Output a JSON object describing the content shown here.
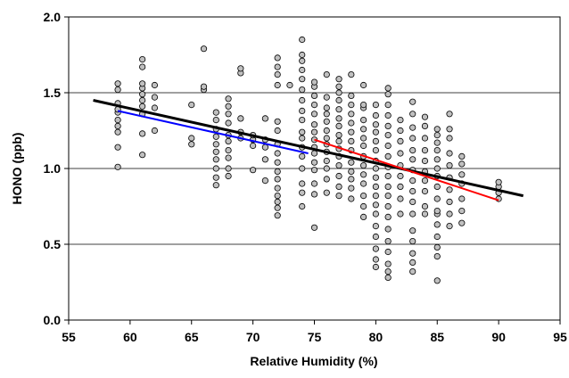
{
  "chart_data": {
    "type": "scatter",
    "title": "",
    "xlabel": "Relative Humidity (%)",
    "ylabel": "HONO (ppb)",
    "xlim": [
      55,
      95
    ],
    "ylim": [
      0.0,
      2.0
    ],
    "x_ticks": [
      "55",
      "60",
      "65",
      "70",
      "75",
      "80",
      "85",
      "90",
      "95"
    ],
    "y_ticks": [
      "0.0",
      "0.5",
      "1.0",
      "1.5",
      "2.0"
    ],
    "grid": "horizontal",
    "legend": "none",
    "marker_fill": "#c0c0c0",
    "marker_edge": "#000000",
    "points": [
      [
        59,
        1.01
      ],
      [
        59,
        1.14
      ],
      [
        59,
        1.24
      ],
      [
        59,
        1.28
      ],
      [
        59,
        1.32
      ],
      [
        59,
        1.37
      ],
      [
        59,
        1.39
      ],
      [
        59,
        1.43
      ],
      [
        59,
        1.52
      ],
      [
        59,
        1.56
      ],
      [
        61,
        1.09
      ],
      [
        61,
        1.23
      ],
      [
        61,
        1.36
      ],
      [
        61,
        1.41
      ],
      [
        61,
        1.45
      ],
      [
        61,
        1.49
      ],
      [
        61,
        1.53
      ],
      [
        61,
        1.56
      ],
      [
        61,
        1.67
      ],
      [
        61,
        1.72
      ],
      [
        62,
        1.25
      ],
      [
        62,
        1.4
      ],
      [
        62,
        1.47
      ],
      [
        62,
        1.55
      ],
      [
        65,
        1.16
      ],
      [
        65,
        1.2
      ],
      [
        65,
        1.42
      ],
      [
        66,
        1.52
      ],
      [
        66,
        1.54
      ],
      [
        66,
        1.79
      ],
      [
        67,
        0.89
      ],
      [
        67,
        0.94
      ],
      [
        67,
        1.0
      ],
      [
        67,
        1.06
      ],
      [
        67,
        1.11
      ],
      [
        67,
        1.16
      ],
      [
        67,
        1.21
      ],
      [
        67,
        1.26
      ],
      [
        67,
        1.32
      ],
      [
        67,
        1.37
      ],
      [
        68,
        0.95
      ],
      [
        68,
        1.0
      ],
      [
        68,
        1.07
      ],
      [
        68,
        1.12
      ],
      [
        68,
        1.18
      ],
      [
        68,
        1.22
      ],
      [
        68,
        1.3
      ],
      [
        68,
        1.36
      ],
      [
        68,
        1.41
      ],
      [
        68,
        1.46
      ],
      [
        69,
        1.2
      ],
      [
        69,
        1.24
      ],
      [
        69,
        1.33
      ],
      [
        69,
        1.63
      ],
      [
        69,
        1.66
      ],
      [
        70,
        0.99
      ],
      [
        70,
        1.15
      ],
      [
        70,
        1.19
      ],
      [
        70,
        1.22
      ],
      [
        71,
        0.92
      ],
      [
        71,
        1.06
      ],
      [
        71,
        1.14
      ],
      [
        71,
        1.19
      ],
      [
        71,
        1.33
      ],
      [
        72,
        0.69
      ],
      [
        72,
        0.74
      ],
      [
        72,
        0.78
      ],
      [
        72,
        0.82
      ],
      [
        72,
        0.87
      ],
      [
        72,
        0.93
      ],
      [
        72,
        0.98
      ],
      [
        72,
        1.04
      ],
      [
        72,
        1.1
      ],
      [
        72,
        1.16
      ],
      [
        72,
        1.25
      ],
      [
        72,
        1.31
      ],
      [
        72,
        1.55
      ],
      [
        72,
        1.62
      ],
      [
        72,
        1.67
      ],
      [
        72,
        1.73
      ],
      [
        73,
        1.55
      ],
      [
        74,
        0.75
      ],
      [
        74,
        0.84
      ],
      [
        74,
        0.9
      ],
      [
        74,
        1.0
      ],
      [
        74,
        1.08
      ],
      [
        74,
        1.14
      ],
      [
        74,
        1.2
      ],
      [
        74,
        1.24
      ],
      [
        74,
        1.32
      ],
      [
        74,
        1.38
      ],
      [
        74,
        1.45
      ],
      [
        74,
        1.52
      ],
      [
        74,
        1.59
      ],
      [
        74,
        1.65
      ],
      [
        74,
        1.71
      ],
      [
        74,
        1.75
      ],
      [
        74,
        1.85
      ],
      [
        75,
        0.61
      ],
      [
        75,
        0.83
      ],
      [
        75,
        0.9
      ],
      [
        75,
        0.99
      ],
      [
        75,
        1.04
      ],
      [
        75,
        1.1
      ],
      [
        75,
        1.14
      ],
      [
        75,
        1.19
      ],
      [
        75,
        1.24
      ],
      [
        75,
        1.29
      ],
      [
        75,
        1.36
      ],
      [
        75,
        1.42
      ],
      [
        75,
        1.48
      ],
      [
        75,
        1.54
      ],
      [
        75,
        1.57
      ],
      [
        76,
        0.84
      ],
      [
        76,
        0.93
      ],
      [
        76,
        1.0
      ],
      [
        76,
        1.05
      ],
      [
        76,
        1.11
      ],
      [
        76,
        1.16
      ],
      [
        76,
        1.2
      ],
      [
        76,
        1.25
      ],
      [
        76,
        1.31
      ],
      [
        76,
        1.36
      ],
      [
        76,
        1.4
      ],
      [
        76,
        1.47
      ],
      [
        76,
        1.62
      ],
      [
        77,
        0.82
      ],
      [
        77,
        0.88
      ],
      [
        77,
        0.95
      ],
      [
        77,
        1.02
      ],
      [
        77,
        1.08
      ],
      [
        77,
        1.13
      ],
      [
        77,
        1.18
      ],
      [
        77,
        1.22
      ],
      [
        77,
        1.28
      ],
      [
        77,
        1.33
      ],
      [
        77,
        1.39
      ],
      [
        77,
        1.45
      ],
      [
        77,
        1.5
      ],
      [
        77,
        1.54
      ],
      [
        77,
        1.59
      ],
      [
        78,
        0.8
      ],
      [
        78,
        0.87
      ],
      [
        78,
        0.93
      ],
      [
        78,
        0.98
      ],
      [
        78,
        1.04
      ],
      [
        78,
        1.12
      ],
      [
        78,
        1.18
      ],
      [
        78,
        1.24
      ],
      [
        78,
        1.3
      ],
      [
        78,
        1.36
      ],
      [
        78,
        1.42
      ],
      [
        78,
        1.48
      ],
      [
        78,
        1.62
      ],
      [
        79,
        0.68
      ],
      [
        79,
        0.75
      ],
      [
        79,
        0.82
      ],
      [
        79,
        0.9
      ],
      [
        79,
        0.96
      ],
      [
        79,
        1.02
      ],
      [
        79,
        1.08
      ],
      [
        79,
        1.15
      ],
      [
        79,
        1.2
      ],
      [
        79,
        1.26
      ],
      [
        79,
        1.32
      ],
      [
        79,
        1.4
      ],
      [
        79,
        1.42
      ],
      [
        79,
        1.55
      ],
      [
        80,
        0.35
      ],
      [
        80,
        0.4
      ],
      [
        80,
        0.47
      ],
      [
        80,
        0.55
      ],
      [
        80,
        0.62
      ],
      [
        80,
        0.7
      ],
      [
        80,
        0.76
      ],
      [
        80,
        0.82
      ],
      [
        80,
        0.88
      ],
      [
        80,
        0.94
      ],
      [
        80,
        1.0
      ],
      [
        80,
        1.05
      ],
      [
        80,
        1.12
      ],
      [
        80,
        1.18
      ],
      [
        80,
        1.24
      ],
      [
        80,
        1.29
      ],
      [
        80,
        1.35
      ],
      [
        80,
        1.42
      ],
      [
        81,
        0.28
      ],
      [
        81,
        0.32
      ],
      [
        81,
        0.37
      ],
      [
        81,
        0.45
      ],
      [
        81,
        0.52
      ],
      [
        81,
        0.6
      ],
      [
        81,
        0.68
      ],
      [
        81,
        0.75
      ],
      [
        81,
        0.82
      ],
      [
        81,
        0.88
      ],
      [
        81,
        0.95
      ],
      [
        81,
        1.01
      ],
      [
        81,
        1.08
      ],
      [
        81,
        1.15
      ],
      [
        81,
        1.22
      ],
      [
        81,
        1.28
      ],
      [
        81,
        1.35
      ],
      [
        81,
        1.42
      ],
      [
        81,
        1.49
      ],
      [
        81,
        1.53
      ],
      [
        82,
        0.7
      ],
      [
        82,
        0.8
      ],
      [
        82,
        0.88
      ],
      [
        82,
        0.95
      ],
      [
        82,
        1.02
      ],
      [
        82,
        1.1
      ],
      [
        82,
        1.18
      ],
      [
        82,
        1.25
      ],
      [
        82,
        1.32
      ],
      [
        83,
        0.32
      ],
      [
        83,
        0.38
      ],
      [
        83,
        0.44
      ],
      [
        83,
        0.52
      ],
      [
        83,
        0.59
      ],
      [
        83,
        0.7
      ],
      [
        83,
        0.78
      ],
      [
        83,
        0.85
      ],
      [
        83,
        0.92
      ],
      [
        83,
        0.99
      ],
      [
        83,
        1.06
      ],
      [
        83,
        1.12
      ],
      [
        83,
        1.2
      ],
      [
        83,
        1.27
      ],
      [
        83,
        1.36
      ],
      [
        83,
        1.44
      ],
      [
        84,
        0.7
      ],
      [
        84,
        0.75
      ],
      [
        84,
        0.85
      ],
      [
        84,
        0.92
      ],
      [
        84,
        0.98
      ],
      [
        84,
        1.05
      ],
      [
        84,
        1.12
      ],
      [
        84,
        1.2
      ],
      [
        84,
        1.28
      ],
      [
        84,
        1.34
      ],
      [
        85,
        0.26
      ],
      [
        85,
        0.42
      ],
      [
        85,
        0.48
      ],
      [
        85,
        0.55
      ],
      [
        85,
        0.63
      ],
      [
        85,
        0.7
      ],
      [
        85,
        0.72
      ],
      [
        85,
        0.8
      ],
      [
        85,
        0.88
      ],
      [
        85,
        0.95
      ],
      [
        85,
        1.0
      ],
      [
        85,
        1.06
      ],
      [
        85,
        1.12
      ],
      [
        85,
        1.17
      ],
      [
        85,
        1.22
      ],
      [
        85,
        1.26
      ],
      [
        86,
        0.62
      ],
      [
        86,
        0.7
      ],
      [
        86,
        0.78
      ],
      [
        86,
        0.86
      ],
      [
        86,
        0.94
      ],
      [
        86,
        1.02
      ],
      [
        86,
        1.1
      ],
      [
        86,
        1.2
      ],
      [
        86,
        1.26
      ],
      [
        86,
        1.36
      ],
      [
        87,
        0.64
      ],
      [
        87,
        0.72
      ],
      [
        87,
        0.8
      ],
      [
        87,
        0.9
      ],
      [
        87,
        0.96
      ],
      [
        87,
        1.03
      ],
      [
        87,
        1.08
      ],
      [
        90,
        0.8
      ],
      [
        90,
        0.84
      ],
      [
        90,
        0.88
      ],
      [
        90,
        0.91
      ]
    ],
    "lines": [
      {
        "color": "#000000",
        "x": [
          57,
          92
        ],
        "y": [
          1.45,
          0.82
        ]
      },
      {
        "color": "#0000ff",
        "x": [
          59,
          74.5
        ],
        "y": [
          1.38,
          1.1
        ]
      },
      {
        "color": "#ff0000",
        "x": [
          75,
          90
        ],
        "y": [
          1.19,
          0.79
        ]
      }
    ]
  }
}
